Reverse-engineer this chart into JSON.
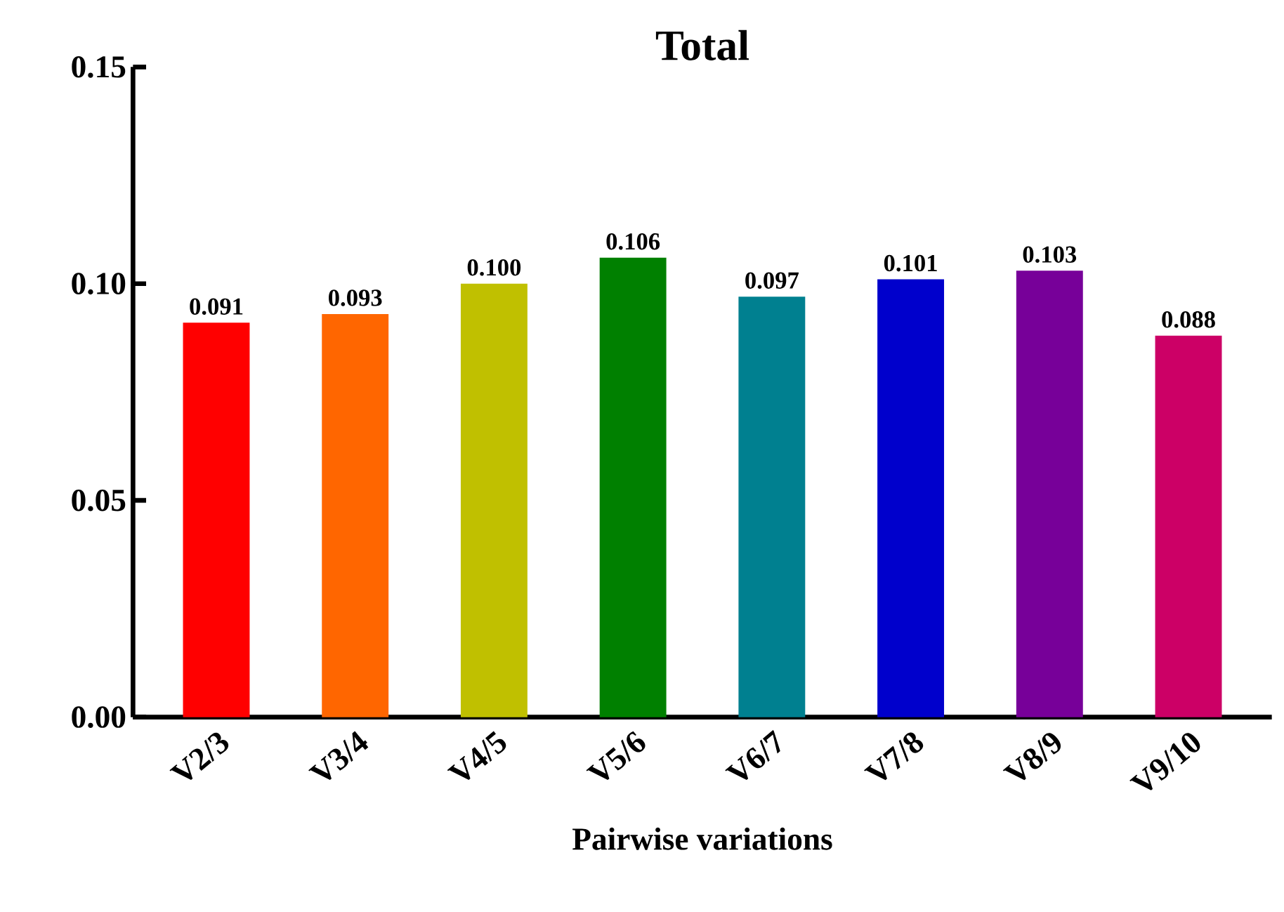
{
  "chart_data": {
    "type": "bar",
    "title": "Total",
    "xlabel": "Pairwise variations",
    "categories": [
      "V2/3",
      "V3/4",
      "V4/5",
      "V5/6",
      "V6/7",
      "V7/8",
      "V8/9",
      "V9/10"
    ],
    "values": [
      0.091,
      0.093,
      0.1,
      0.106,
      0.097,
      0.101,
      0.103,
      0.088
    ],
    "value_labels": [
      "0.091",
      "0.093",
      "0.100",
      "0.106",
      "0.097",
      "0.101",
      "0.103",
      "0.088"
    ],
    "colors": [
      "#ff0000",
      "#ff6600",
      "#c0c000",
      "#008000",
      "#008090",
      "#0000cc",
      "#770099",
      "#cc0066"
    ],
    "ylim": [
      0,
      0.15
    ],
    "yticks": [
      {
        "value": 0,
        "label": "0.00"
      },
      {
        "value": 0.05,
        "label": "0.05"
      },
      {
        "value": 0.1,
        "label": "0.10"
      },
      {
        "value": 0.15,
        "label": "0.15"
      }
    ],
    "grid": false
  }
}
